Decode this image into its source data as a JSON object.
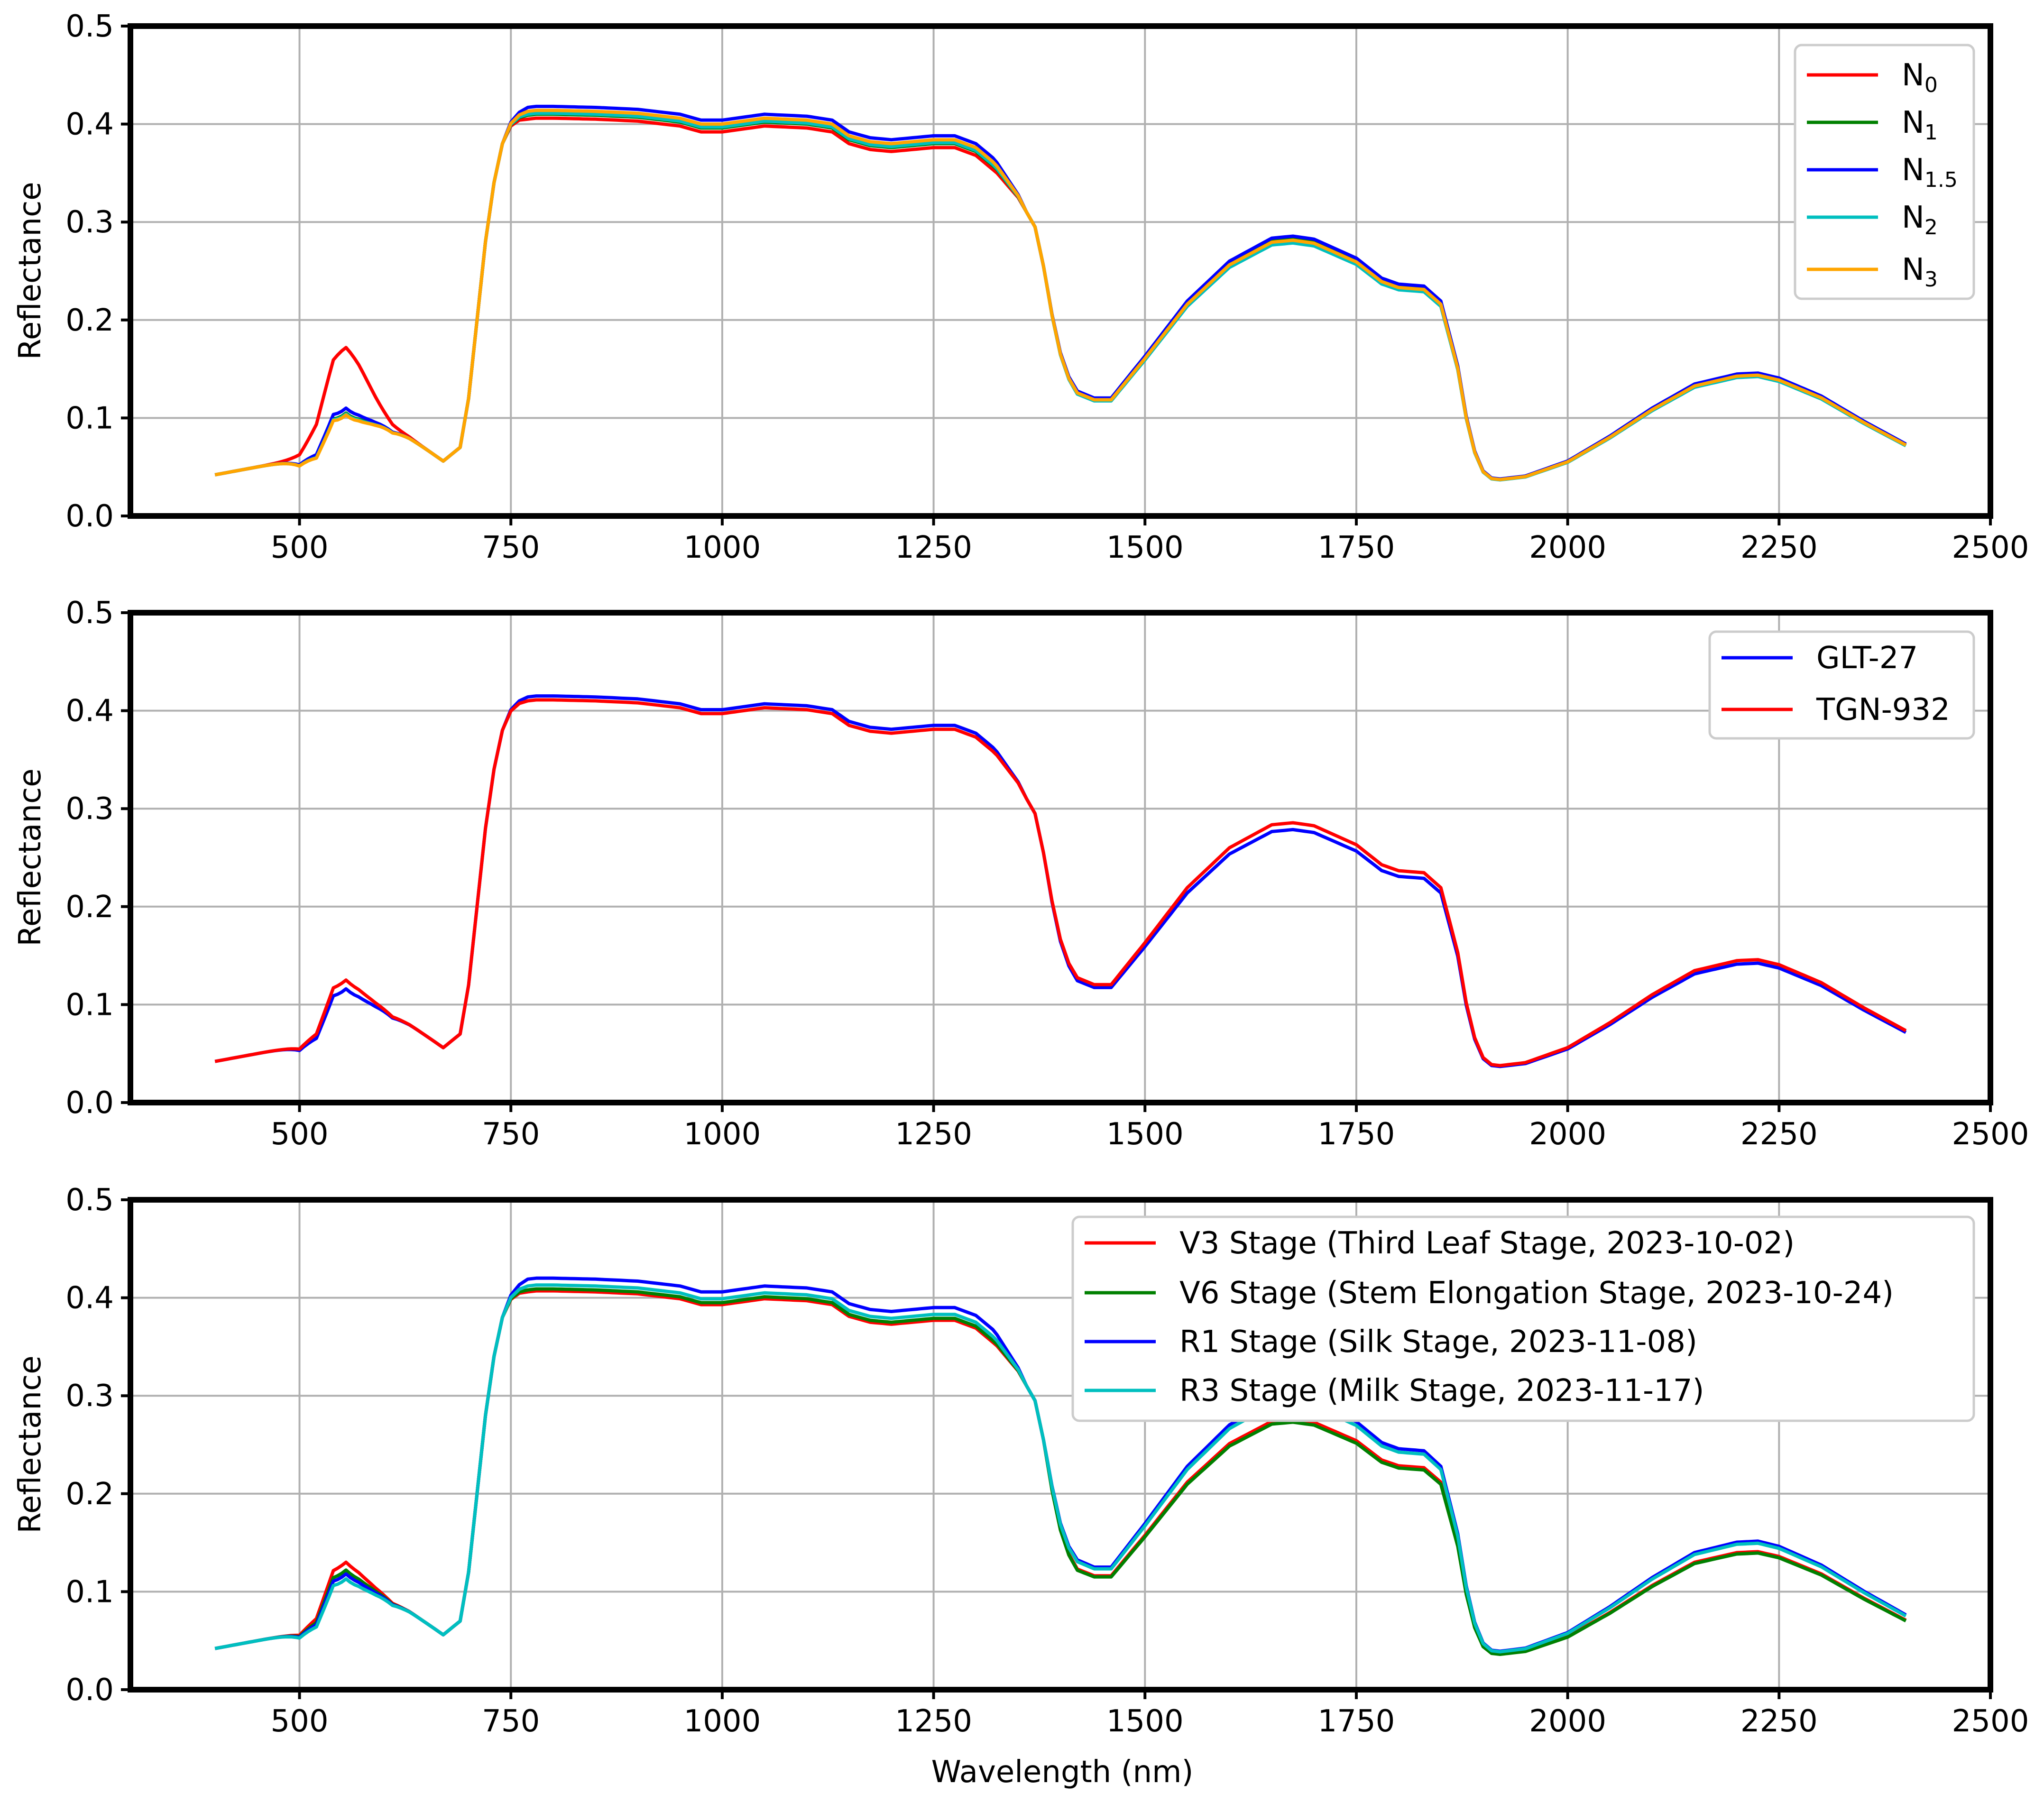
{
  "chart_data": [
    {
      "type": "line",
      "ylabel": "Reflectance",
      "xlabel": "",
      "xlim": [
        300,
        2500
      ],
      "ylim": [
        0,
        0.5
      ],
      "xticks": [
        500,
        750,
        1000,
        1250,
        1500,
        1750,
        2000,
        2250,
        2500
      ],
      "yticks": [
        0.0,
        0.1,
        0.2,
        0.3,
        0.4,
        0.5
      ],
      "xtick_labels": [
        "500",
        "750",
        "1000",
        "1250",
        "1500",
        "1750",
        "2000",
        "2250",
        "2500"
      ],
      "ytick_labels": [
        "0.0",
        "0.1",
        "0.2",
        "0.3",
        "0.4",
        "0.5"
      ],
      "grid": true,
      "legend_position": "top-right",
      "series": [
        {
          "name": "N",
          "subscript": "0",
          "color": "#ff0000",
          "scale": 1.0,
          "green_peak": 0.172,
          "nir_plateau": 0.404
        },
        {
          "name": "N",
          "subscript": "1",
          "color": "#008000",
          "scale": 1.012,
          "green_peak": 0.105,
          "nir_plateau": 0.408
        },
        {
          "name": "N",
          "subscript": "1.5",
          "color": "#0000ff",
          "scale": 1.02,
          "green_peak": 0.11,
          "nir_plateau": 0.416
        },
        {
          "name": "N",
          "subscript": "2",
          "color": "#00bfbf",
          "scale": 0.995,
          "green_peak": 0.104,
          "nir_plateau": 0.409
        },
        {
          "name": "N",
          "subscript": "3",
          "color": "#ffa500",
          "scale": 1.005,
          "green_peak": 0.103,
          "nir_plateau": 0.412
        }
      ]
    },
    {
      "type": "line",
      "ylabel": "Reflectance",
      "xlabel": "",
      "xlim": [
        300,
        2500
      ],
      "ylim": [
        0,
        0.5
      ],
      "xticks": [
        500,
        750,
        1000,
        1250,
        1500,
        1750,
        2000,
        2250,
        2500
      ],
      "yticks": [
        0.0,
        0.1,
        0.2,
        0.3,
        0.4,
        0.5
      ],
      "xtick_labels": [
        "500",
        "750",
        "1000",
        "1250",
        "1500",
        "1750",
        "2000",
        "2250",
        "2500"
      ],
      "ytick_labels": [
        "0.0",
        "0.1",
        "0.2",
        "0.3",
        "0.4",
        "0.5"
      ],
      "grid": true,
      "legend_position": "top-right",
      "series": [
        {
          "name": "GLT-27",
          "subscript": "",
          "color": "#0000ff",
          "scale": 0.995,
          "green_peak": 0.116,
          "nir_plateau": 0.413
        },
        {
          "name": "TGN-932",
          "subscript": "",
          "color": "#ff0000",
          "scale": 1.02,
          "green_peak": 0.125,
          "nir_plateau": 0.409
        }
      ]
    },
    {
      "type": "line",
      "ylabel": "Reflectance",
      "xlabel": "Wavelength (nm)",
      "xlim": [
        300,
        2500
      ],
      "ylim": [
        0,
        0.5
      ],
      "xticks": [
        500,
        750,
        1000,
        1250,
        1500,
        1750,
        2000,
        2250,
        2500
      ],
      "yticks": [
        0.0,
        0.1,
        0.2,
        0.3,
        0.4,
        0.5
      ],
      "xtick_labels": [
        "500",
        "750",
        "1000",
        "1250",
        "1500",
        "1750",
        "2000",
        "2250",
        "2500"
      ],
      "ytick_labels": [
        "0.0",
        "0.1",
        "0.2",
        "0.3",
        "0.4",
        "0.5"
      ],
      "grid": true,
      "legend_position": "top-right",
      "series": [
        {
          "name": "V3 Stage (Third Leaf Stage, 2023-10-02)",
          "subscript": "",
          "color": "#ff0000",
          "scale": 0.985,
          "green_peak": 0.13,
          "nir_plateau": 0.405
        },
        {
          "name": "V6 Stage (Stem Elongation Stage, 2023-10-24)",
          "subscript": "",
          "color": "#008000",
          "scale": 0.975,
          "green_peak": 0.122,
          "nir_plateau": 0.407
        },
        {
          "name": "R1 Stage (Silk Stage, 2023-11-08)",
          "subscript": "",
          "color": "#0000ff",
          "scale": 1.06,
          "green_peak": 0.118,
          "nir_plateau": 0.418
        },
        {
          "name": "R3 Stage (Milk Stage, 2023-11-17)",
          "subscript": "",
          "color": "#00bfbf",
          "scale": 1.045,
          "green_peak": 0.113,
          "nir_plateau": 0.411
        }
      ]
    }
  ],
  "base_spectrum": {
    "wavelength_nm": [
      400,
      450,
      500,
      520,
      540,
      555,
      570,
      590,
      610,
      630,
      650,
      670,
      690,
      700,
      710,
      720,
      730,
      740,
      750,
      760,
      780,
      800,
      850,
      900,
      950,
      975,
      1000,
      1050,
      1100,
      1130,
      1150,
      1175,
      1200,
      1250,
      1275,
      1300,
      1325,
      1350,
      1370,
      1380,
      1390,
      1400,
      1410,
      1420,
      1440,
      1460,
      1500,
      1550,
      1600,
      1650,
      1675,
      1700,
      1750,
      1780,
      1800,
      1830,
      1850,
      1870,
      1880,
      1890,
      1900,
      1910,
      1920,
      1950,
      2000,
      2050,
      2100,
      2150,
      2200,
      2225,
      2250,
      2300,
      2350,
      2400
    ],
    "reflectance": [
      0.042,
      0.05,
      0.058,
      0.08,
      0.135,
      0.145,
      0.132,
      0.11,
      0.09,
      0.08,
      0.068,
      0.056,
      0.07,
      0.12,
      0.2,
      0.28,
      0.34,
      0.38,
      0.398,
      0.404,
      0.406,
      0.406,
      0.405,
      0.403,
      0.398,
      0.392,
      0.392,
      0.398,
      0.396,
      0.392,
      0.38,
      0.374,
      0.372,
      0.376,
      0.376,
      0.368,
      0.35,
      0.325,
      0.295,
      0.255,
      0.205,
      0.165,
      0.14,
      0.125,
      0.118,
      0.118,
      0.16,
      0.215,
      0.255,
      0.278,
      0.28,
      0.277,
      0.258,
      0.238,
      0.232,
      0.23,
      0.215,
      0.15,
      0.1,
      0.065,
      0.045,
      0.038,
      0.037,
      0.04,
      0.055,
      0.08,
      0.108,
      0.132,
      0.142,
      0.143,
      0.138,
      0.12,
      0.095,
      0.072
    ]
  }
}
